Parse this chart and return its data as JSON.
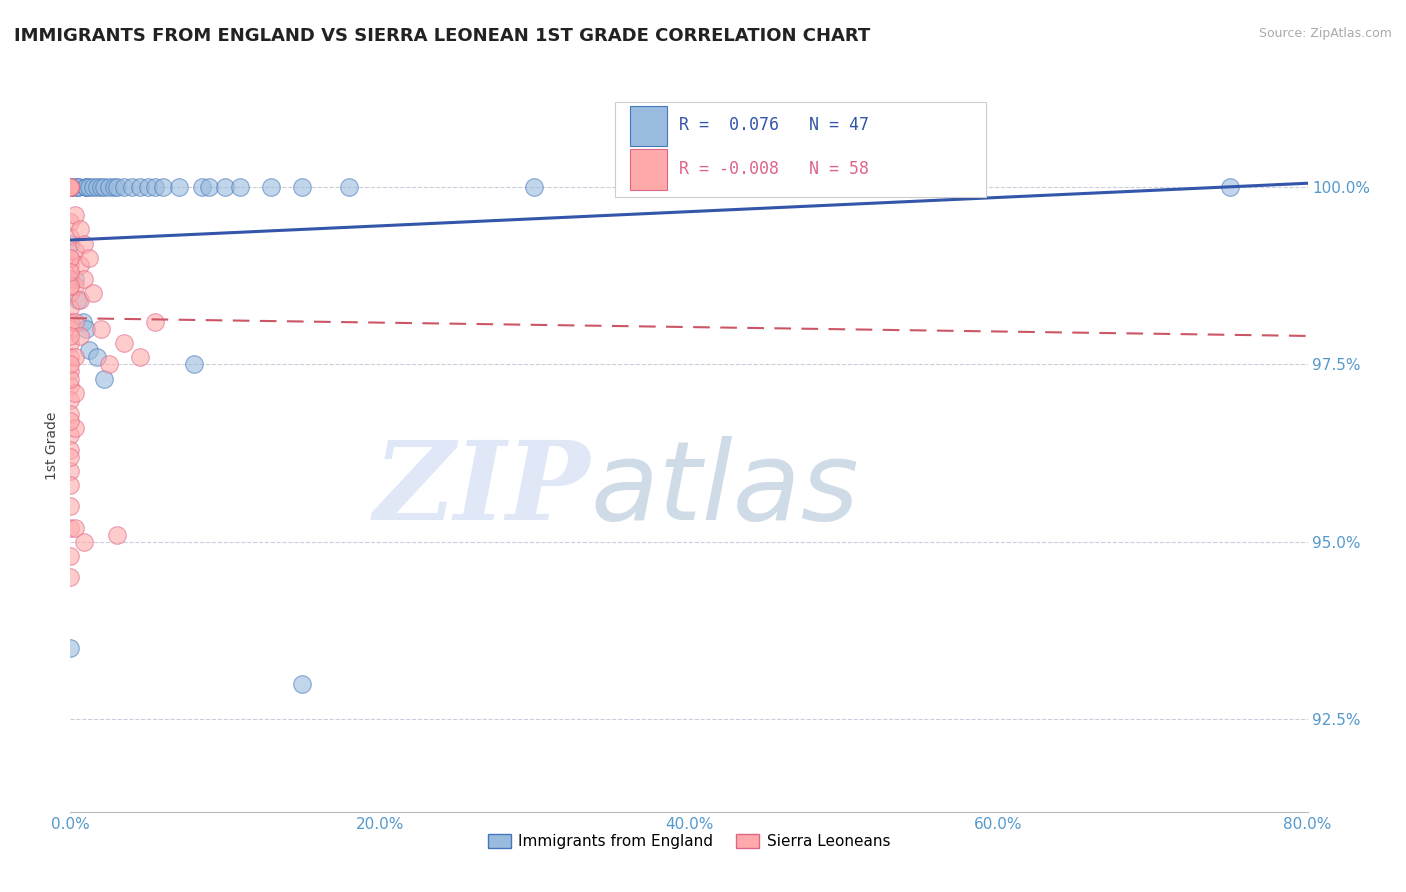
{
  "title": "IMMIGRANTS FROM ENGLAND VS SIERRA LEONEAN 1ST GRADE CORRELATION CHART",
  "source": "Source: ZipAtlas.com",
  "ylabel": "1st Grade",
  "xlim": [
    0.0,
    80.0
  ],
  "ylim": [
    91.2,
    101.5
  ],
  "xticks": [
    0.0,
    20.0,
    40.0,
    60.0,
    80.0
  ],
  "yticks": [
    92.5,
    95.0,
    97.5,
    100.0
  ],
  "blue_R": 0.076,
  "blue_N": 47,
  "pink_R": -0.008,
  "pink_N": 58,
  "blue_color": "#99BBDD",
  "pink_color": "#FFAAAA",
  "blue_edge_color": "#4477BB",
  "pink_edge_color": "#DD6688",
  "blue_line_color": "#3355AA",
  "pink_line_color": "#CC5566",
  "grid_color": "#CCCCDD",
  "axis_tick_color": "#5599CC",
  "title_color": "#222222",
  "blue_line_y0": 99.25,
  "blue_line_y1": 100.05,
  "pink_line_y0": 98.15,
  "pink_line_y1": 97.9,
  "blue_scatter": [
    [
      0.0,
      100.0
    ],
    [
      0.0,
      100.0
    ],
    [
      0.0,
      100.0
    ],
    [
      0.0,
      100.0
    ],
    [
      0.0,
      100.0
    ],
    [
      0.0,
      100.0
    ],
    [
      0.0,
      100.0
    ],
    [
      0.3,
      100.0
    ],
    [
      0.5,
      100.0
    ],
    [
      0.5,
      100.0
    ],
    [
      1.0,
      100.0
    ],
    [
      1.0,
      100.0
    ],
    [
      1.2,
      100.0
    ],
    [
      1.5,
      100.0
    ],
    [
      1.7,
      100.0
    ],
    [
      2.0,
      100.0
    ],
    [
      2.2,
      100.0
    ],
    [
      2.5,
      100.0
    ],
    [
      2.8,
      100.0
    ],
    [
      3.0,
      100.0
    ],
    [
      3.5,
      100.0
    ],
    [
      4.0,
      100.0
    ],
    [
      4.5,
      100.0
    ],
    [
      5.0,
      100.0
    ],
    [
      5.5,
      100.0
    ],
    [
      6.0,
      100.0
    ],
    [
      7.0,
      100.0
    ],
    [
      8.5,
      100.0
    ],
    [
      9.0,
      100.0
    ],
    [
      10.0,
      100.0
    ],
    [
      11.0,
      100.0
    ],
    [
      13.0,
      100.0
    ],
    [
      15.0,
      100.0
    ],
    [
      18.0,
      100.0
    ],
    [
      0.0,
      99.2
    ],
    [
      0.3,
      98.7
    ],
    [
      0.5,
      98.4
    ],
    [
      0.8,
      98.1
    ],
    [
      1.0,
      98.0
    ],
    [
      1.2,
      97.7
    ],
    [
      1.7,
      97.6
    ],
    [
      2.2,
      97.3
    ],
    [
      8.0,
      97.5
    ],
    [
      30.0,
      100.0
    ],
    [
      75.0,
      100.0
    ],
    [
      0.0,
      93.5
    ],
    [
      15.0,
      93.0
    ]
  ],
  "pink_scatter": [
    [
      0.0,
      100.0
    ],
    [
      0.0,
      100.0
    ],
    [
      0.0,
      100.0
    ],
    [
      0.0,
      100.0
    ],
    [
      0.0,
      99.5
    ],
    [
      0.0,
      99.3
    ],
    [
      0.0,
      99.0
    ],
    [
      0.0,
      98.9
    ],
    [
      0.0,
      98.7
    ],
    [
      0.0,
      98.5
    ],
    [
      0.0,
      98.3
    ],
    [
      0.0,
      98.1
    ],
    [
      0.0,
      98.0
    ],
    [
      0.0,
      97.8
    ],
    [
      0.0,
      97.6
    ],
    [
      0.0,
      97.4
    ],
    [
      0.0,
      97.2
    ],
    [
      0.0,
      97.0
    ],
    [
      0.0,
      96.8
    ],
    [
      0.0,
      96.5
    ],
    [
      0.0,
      96.3
    ],
    [
      0.0,
      96.0
    ],
    [
      0.0,
      95.8
    ],
    [
      0.0,
      95.5
    ],
    [
      0.0,
      95.2
    ],
    [
      0.0,
      94.8
    ],
    [
      0.0,
      94.5
    ],
    [
      0.3,
      99.6
    ],
    [
      0.3,
      99.1
    ],
    [
      0.3,
      98.6
    ],
    [
      0.3,
      98.1
    ],
    [
      0.3,
      97.6
    ],
    [
      0.3,
      97.1
    ],
    [
      0.3,
      96.6
    ],
    [
      0.6,
      99.4
    ],
    [
      0.6,
      98.9
    ],
    [
      0.6,
      98.4
    ],
    [
      0.6,
      97.9
    ],
    [
      0.9,
      99.2
    ],
    [
      0.9,
      98.7
    ],
    [
      1.2,
      99.0
    ],
    [
      1.5,
      98.5
    ],
    [
      2.0,
      98.0
    ],
    [
      2.5,
      97.5
    ],
    [
      3.5,
      97.8
    ],
    [
      4.5,
      97.6
    ],
    [
      5.5,
      98.1
    ],
    [
      0.3,
      95.2
    ],
    [
      0.9,
      95.0
    ],
    [
      3.0,
      95.1
    ],
    [
      0.0,
      98.6
    ],
    [
      0.0,
      97.3
    ],
    [
      0.0,
      96.7
    ],
    [
      0.0,
      99.0
    ],
    [
      0.0,
      98.8
    ],
    [
      0.0,
      97.9
    ],
    [
      0.0,
      97.5
    ],
    [
      0.0,
      96.2
    ]
  ]
}
